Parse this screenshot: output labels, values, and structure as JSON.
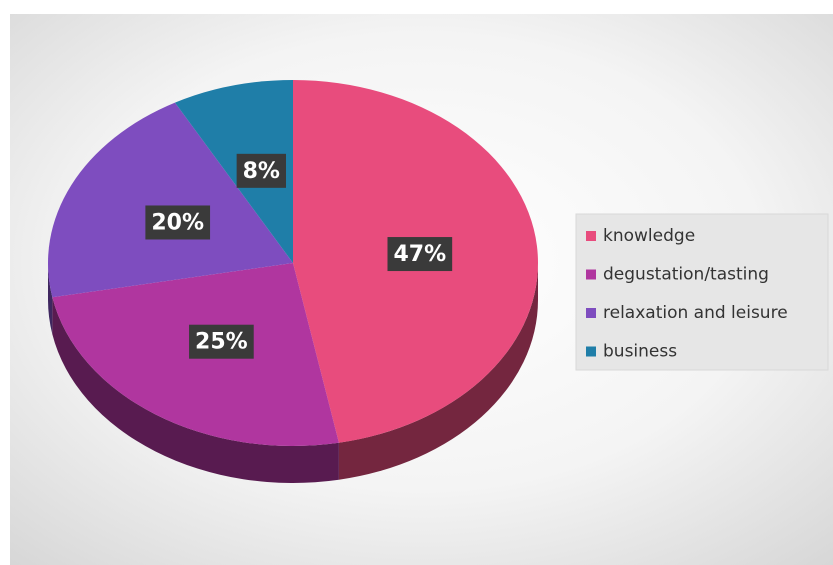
{
  "chart_data": {
    "type": "pie",
    "categories": [
      "knowledge",
      "degustation/tasting",
      "relaxation and leisure",
      "business"
    ],
    "values": [
      47,
      25,
      20,
      8
    ],
    "value_labels": [
      "47%",
      "25%",
      "20%",
      "8%"
    ],
    "colors": [
      "#e84c7d",
      "#b0369f",
      "#7e4dbf",
      "#1f7ea8"
    ],
    "legend": "right"
  }
}
